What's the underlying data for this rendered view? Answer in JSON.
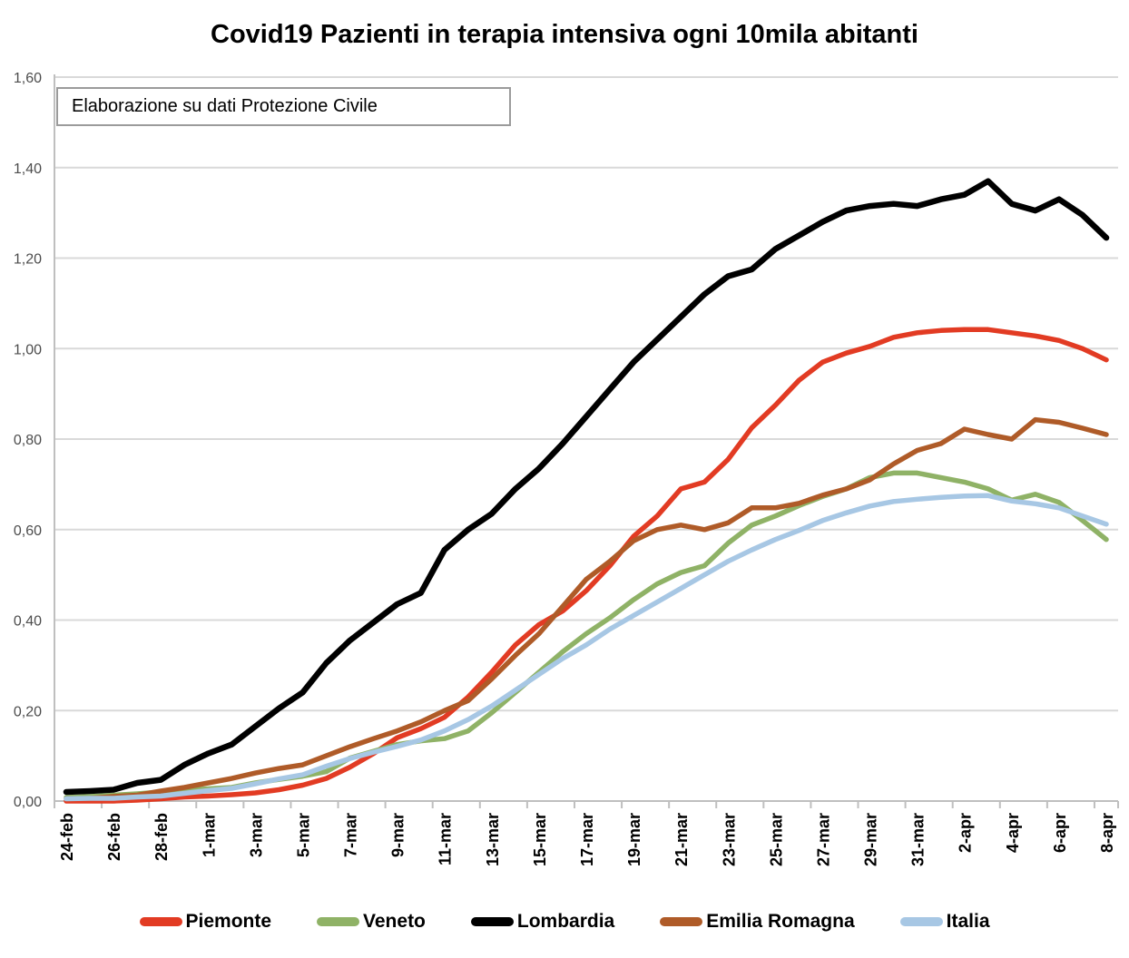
{
  "title": "Covid19 Pazienti in terapia intensiva ogni 10mila abitanti",
  "subtitle": "Elaborazione su dati Protezione Civile",
  "chart_data": {
    "type": "line",
    "title": "Covid19 Pazienti in terapia intensiva ogni 10mila abitanti",
    "subtitle": "Elaborazione su dati Protezione Civile",
    "xlabel": "",
    "ylabel": "",
    "ylim": [
      0,
      1.6
    ],
    "ytick_step": 0.2,
    "y_tick_labels": [
      "0,00",
      "0,20",
      "0,40",
      "0,60",
      "0,80",
      "1,00",
      "1,20",
      "1,40",
      "1,60"
    ],
    "x_tick_labels": [
      "24-feb",
      "26-feb",
      "28-feb",
      "1-mar",
      "3-mar",
      "5-mar",
      "7-mar",
      "9-mar",
      "11-mar",
      "13-mar",
      "15-mar",
      "17-mar",
      "19-mar",
      "21-mar",
      "23-mar",
      "25-mar",
      "27-mar",
      "29-mar",
      "31-mar",
      "2-apr",
      "4-apr",
      "6-apr",
      "8-apr"
    ],
    "x": [
      "24-feb",
      "25-feb",
      "26-feb",
      "27-feb",
      "28-feb",
      "29-feb",
      "1-mar",
      "2-mar",
      "3-mar",
      "4-mar",
      "5-mar",
      "6-mar",
      "7-mar",
      "8-mar",
      "9-mar",
      "10-mar",
      "11-mar",
      "12-mar",
      "13-mar",
      "14-mar",
      "15-mar",
      "16-mar",
      "17-mar",
      "18-mar",
      "19-mar",
      "20-mar",
      "21-mar",
      "22-mar",
      "23-mar",
      "24-mar",
      "25-mar",
      "26-mar",
      "27-mar",
      "28-mar",
      "29-mar",
      "30-mar",
      "31-mar",
      "1-apr",
      "2-apr",
      "3-apr",
      "4-apr",
      "5-apr",
      "6-apr",
      "7-apr",
      "8-apr"
    ],
    "grid": true,
    "gridline_color": "#d9d9d9",
    "axis_color": "#bfbfbf",
    "legend_position": "bottom",
    "series": [
      {
        "name": "Piemonte",
        "color": "#e23b23",
        "values": [
          0.0,
          0.0,
          0.0,
          0.002,
          0.005,
          0.009,
          0.011,
          0.014,
          0.018,
          0.025,
          0.035,
          0.05,
          0.075,
          0.105,
          0.14,
          0.16,
          0.185,
          0.23,
          0.285,
          0.345,
          0.39,
          0.42,
          0.465,
          0.52,
          0.585,
          0.63,
          0.69,
          0.705,
          0.755,
          0.825,
          0.875,
          0.93,
          0.97,
          0.99,
          1.005,
          1.025,
          1.035,
          1.04,
          1.042,
          1.042,
          1.035,
          1.028,
          1.018,
          1.0,
          0.975
        ]
      },
      {
        "name": "Veneto",
        "color": "#8fb266",
        "values": [
          0.008,
          0.01,
          0.013,
          0.016,
          0.02,
          0.024,
          0.027,
          0.03,
          0.04,
          0.048,
          0.055,
          0.065,
          0.095,
          0.11,
          0.125,
          0.133,
          0.138,
          0.155,
          0.195,
          0.24,
          0.285,
          0.33,
          0.37,
          0.405,
          0.445,
          0.48,
          0.505,
          0.52,
          0.57,
          0.61,
          0.63,
          0.653,
          0.673,
          0.69,
          0.715,
          0.725,
          0.725,
          0.715,
          0.705,
          0.69,
          0.665,
          0.678,
          0.66,
          0.62,
          0.578
        ]
      },
      {
        "name": "Lombardia",
        "color": "#000000",
        "values": [
          0.02,
          0.022,
          0.025,
          0.04,
          0.047,
          0.08,
          0.105,
          0.125,
          0.165,
          0.205,
          0.24,
          0.305,
          0.355,
          0.395,
          0.435,
          0.46,
          0.555,
          0.6,
          0.635,
          0.69,
          0.735,
          0.79,
          0.85,
          0.91,
          0.97,
          1.02,
          1.07,
          1.12,
          1.16,
          1.175,
          1.22,
          1.25,
          1.28,
          1.305,
          1.315,
          1.32,
          1.315,
          1.33,
          1.34,
          1.37,
          1.32,
          1.305,
          1.33,
          1.295,
          1.245
        ]
      },
      {
        "name": "Emilia Romagna",
        "color": "#af5b28",
        "values": [
          0.005,
          0.006,
          0.01,
          0.013,
          0.022,
          0.03,
          0.04,
          0.05,
          0.062,
          0.072,
          0.08,
          0.1,
          0.12,
          0.138,
          0.155,
          0.175,
          0.2,
          0.222,
          0.27,
          0.322,
          0.37,
          0.43,
          0.49,
          0.53,
          0.575,
          0.6,
          0.61,
          0.6,
          0.615,
          0.648,
          0.648,
          0.658,
          0.676,
          0.69,
          0.71,
          0.745,
          0.775,
          0.79,
          0.822,
          0.81,
          0.8,
          0.843,
          0.837,
          0.824,
          0.81
        ]
      },
      {
        "name": "Italia",
        "color": "#a7c7e4",
        "values": [
          0.005,
          0.006,
          0.006,
          0.009,
          0.011,
          0.017,
          0.023,
          0.028,
          0.038,
          0.049,
          0.058,
          0.077,
          0.094,
          0.108,
          0.121,
          0.135,
          0.155,
          0.18,
          0.21,
          0.245,
          0.28,
          0.315,
          0.345,
          0.38,
          0.41,
          0.44,
          0.47,
          0.5,
          0.53,
          0.555,
          0.578,
          0.598,
          0.62,
          0.637,
          0.652,
          0.662,
          0.667,
          0.671,
          0.674,
          0.675,
          0.663,
          0.657,
          0.648,
          0.63,
          0.612
        ]
      }
    ]
  }
}
